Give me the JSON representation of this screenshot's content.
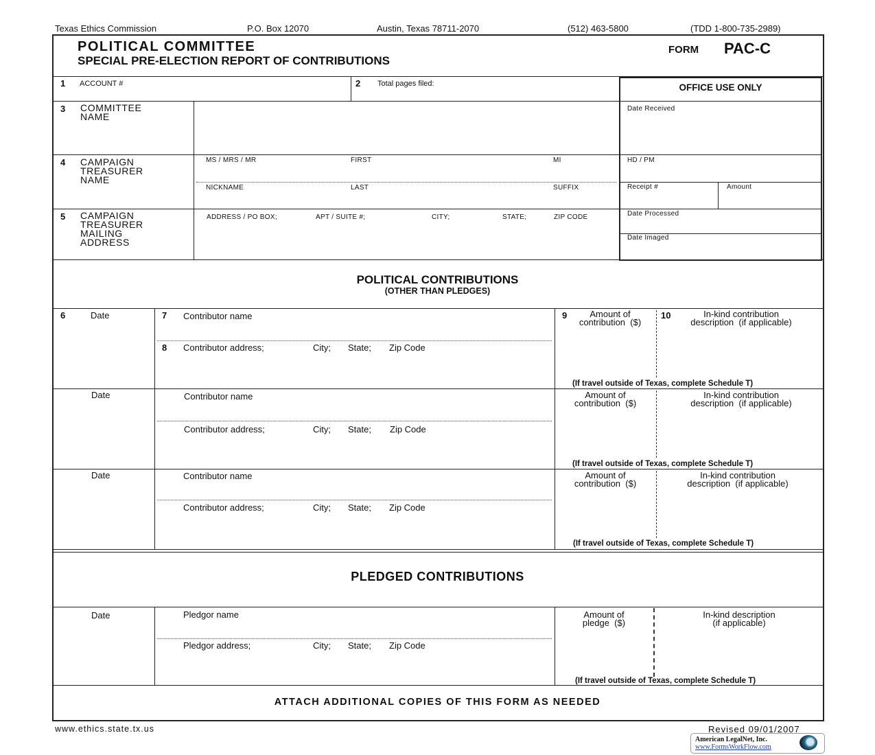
{
  "top_line": {
    "org": "Texas Ethics Commission",
    "pobox": "P.O. Box 12070",
    "city": "Austin, Texas  78711-2070",
    "phone": "(512) 463-5800",
    "tdd": "(TDD 1-800-735-2989)"
  },
  "header": {
    "title": "POLITICAL  COMMITTEE",
    "subtitle": "SPECIAL PRE-ELECTION REPORT OF CONTRIBUTIONS",
    "form_prefix": "FORM",
    "form_code": "PAC-C"
  },
  "fields": {
    "f1_num": "1",
    "f1_label": "ACCOUNT #",
    "f2_num": "2",
    "f2_label": "Total pages filed:",
    "f3_num": "3",
    "f3_label": "COMMITTEE\nNAME",
    "f4_num": "4",
    "f4_label": "CAMPAIGN\nTREASURER\nNAME",
    "f4_sub": {
      "prefix": "MS / MRS / MR",
      "first": "FIRST",
      "mi": "MI",
      "nickname": "NICKNAME",
      "last": "LAST",
      "suffix": "SUFFIX"
    },
    "f5_num": "5",
    "f5_label": "CAMPAIGN\nTREASURER\nMAILING\nADDRESS",
    "f5_sub": {
      "address": "ADDRESS  / PO BOX;",
      "apt": "APT / SUITE #;",
      "city": "CITY;",
      "state": "STATE;",
      "zip": "ZIP CODE"
    }
  },
  "office": {
    "title": "OFFICE USE ONLY",
    "date_received": "Date Received",
    "hd_pm": "HD / PM",
    "receipt": "Receipt  #",
    "amount": "Amount",
    "date_processed": "Date Processed",
    "date_imaged": "Date Imaged"
  },
  "political": {
    "title": "POLITICAL CONTRIBUTIONS",
    "subtitle": "(OTHER THAN PLEDGES)"
  },
  "contrib_rows": [
    {
      "n6": "6",
      "date": "Date",
      "n7": "7",
      "name": "Contributor name",
      "n8": "8",
      "address": "Contributor address;",
      "city": "City;",
      "state": "State;",
      "zip": "Zip Code",
      "n9": "9",
      "amount": "Amount of\ncontribution  ($)",
      "n10": "10",
      "inkind": "In-kind contribution\ndescription  (if applicable)",
      "travel": "(If travel outside of Texas, complete Schedule T)"
    },
    {
      "date": "Date",
      "name": "Contributor name",
      "address": "Contributor address;",
      "city": "City;",
      "state": "State;",
      "zip": "Zip Code",
      "amount": "Amount of\ncontribution  ($)",
      "inkind": "In-kind contribution\ndescription  (if applicable)",
      "travel": "(If travel outside of Texas, complete Schedule T)"
    },
    {
      "date": "Date",
      "name": "Contributor name",
      "address": "Contributor address;",
      "city": "City;",
      "state": "State;",
      "zip": "Zip Code",
      "amount": "Amount of\ncontribution  ($)",
      "inkind": "In-kind contribution\ndescription  (if applicable)",
      "travel": "(If travel outside of Texas, complete Schedule T)"
    }
  ],
  "pledged": {
    "title": "PLEDGED CONTRIBUTIONS",
    "date": "Date",
    "name": "Pledgor name",
    "address": "Pledgor  address;",
    "city": "City;",
    "state": "State;",
    "zip": "Zip Code",
    "amount": "Amount of\npledge  ($)",
    "inkind": "In-kind description\n(if applicable)",
    "travel": "(If travel outside of Texas, complete Schedule T)"
  },
  "attach": "ATTACH  ADDITIONAL  COPIES  OF  THIS  FORM  AS  NEEDED",
  "footer": {
    "website": "www.ethics.state.tx.us",
    "revised": "Revised  09/01/2007",
    "badge_name": "American LegalNet, Inc.",
    "badge_url": "www.FormsWorkFlow.com"
  }
}
